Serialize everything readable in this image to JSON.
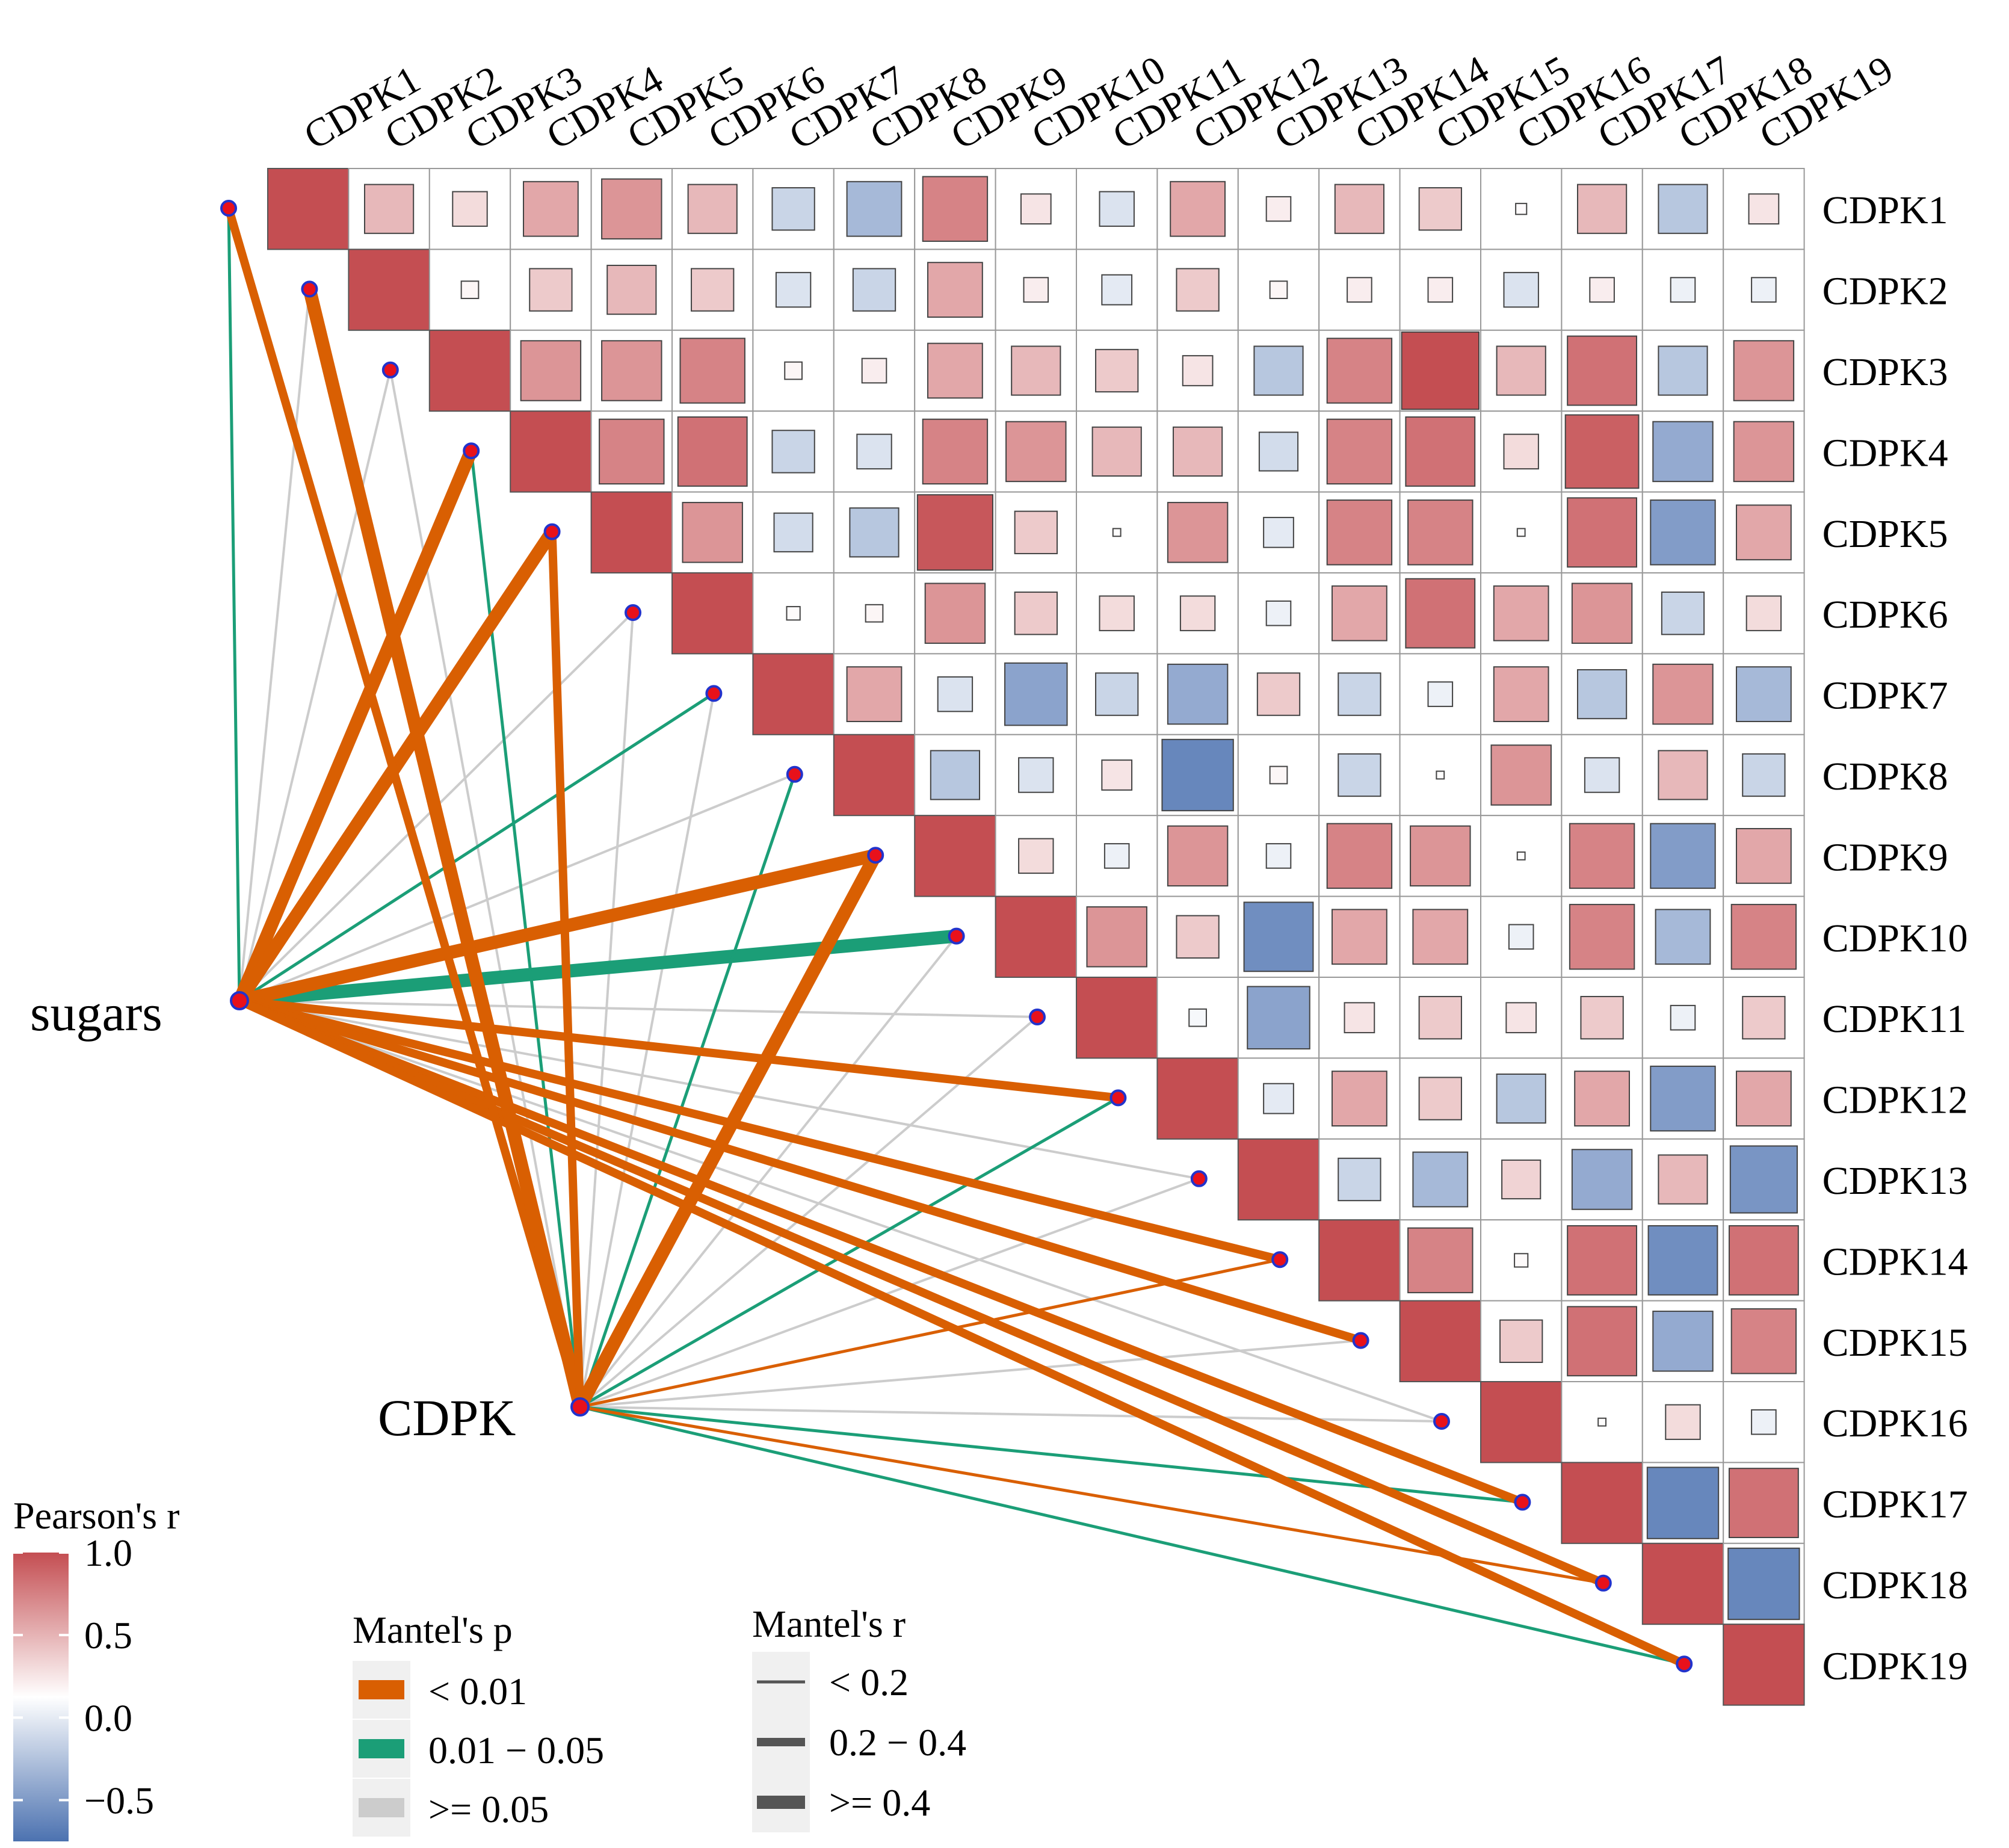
{
  "chart_data": {
    "type": "heatmap",
    "variables": [
      "CDPK1",
      "CDPK2",
      "CDPK3",
      "CDPK4",
      "CDPK5",
      "CDPK6",
      "CDPK7",
      "CDPK8",
      "CDPK9",
      "CDPK10",
      "CDPK11",
      "CDPK12",
      "CDPK13",
      "CDPK14",
      "CDPK15",
      "CDPK16",
      "CDPK17",
      "CDPK18",
      "CDPK19"
    ],
    "pearson_r_upper": [
      [
        0.4,
        0.2,
        0.5,
        0.6,
        0.4,
        -0.3,
        -0.5,
        0.7,
        0.15,
        -0.2,
        0.5,
        0.1,
        0.4,
        0.3,
        0.02,
        0.4,
        -0.4,
        0.15
      ],
      [
        0.05,
        0.3,
        0.4,
        0.3,
        -0.2,
        -0.3,
        0.5,
        0.1,
        -0.15,
        0.3,
        0.05,
        0.1,
        0.1,
        -0.2,
        0.1,
        -0.1,
        -0.1
      ],
      [
        0.6,
        0.6,
        0.7,
        0.05,
        0.1,
        0.5,
        0.4,
        0.3,
        0.15,
        -0.4,
        0.7,
        1.0,
        0.4,
        0.8,
        -0.4,
        0.6
      ],
      [
        0.7,
        0.8,
        -0.3,
        -0.2,
        0.7,
        0.6,
        0.4,
        0.4,
        -0.25,
        0.7,
        0.8,
        0.2,
        0.9,
        -0.6,
        0.6
      ],
      [
        0.6,
        -0.25,
        -0.4,
        0.95,
        0.3,
        0.01,
        0.6,
        -0.15,
        0.7,
        0.7,
        0.01,
        0.8,
        -0.7,
        0.5
      ],
      [
        0.03,
        0.05,
        0.6,
        0.3,
        0.2,
        0.2,
        -0.1,
        0.5,
        0.8,
        0.5,
        0.6,
        -0.3,
        0.2
      ],
      [
        0.5,
        -0.2,
        -0.65,
        -0.3,
        -0.6,
        0.3,
        -0.3,
        -0.1,
        0.5,
        -0.4,
        0.6,
        -0.5
      ],
      [
        -0.4,
        -0.2,
        0.15,
        -0.85,
        0.05,
        -0.3,
        0.01,
        0.6,
        -0.2,
        0.4,
        -0.3
      ],
      [
        0.2,
        -0.1,
        0.6,
        -0.1,
        0.7,
        0.6,
        0.01,
        0.7,
        -0.7,
        0.5
      ],
      [
        0.6,
        0.3,
        -0.8,
        0.5,
        0.5,
        -0.1,
        0.7,
        -0.5,
        0.7
      ],
      [
        -0.05,
        -0.65,
        0.15,
        0.3,
        0.15,
        0.3,
        -0.1,
        0.3
      ],
      [
        -0.15,
        0.5,
        0.3,
        -0.4,
        0.5,
        -0.7,
        0.5
      ],
      [
        -0.3,
        -0.5,
        0.25,
        -0.6,
        0.4,
        -0.75
      ],
      [
        0.7,
        0.03,
        0.8,
        -0.8,
        0.8
      ],
      [
        0.3,
        0.8,
        -0.6,
        0.7
      ],
      [
        0.01,
        0.2,
        -0.1
      ],
      [
        -0.85,
        0.8
      ],
      [
        -0.85
      ],
      []
    ],
    "color_scale": {
      "title": "Pearson's r",
      "ticks": [
        1.0,
        0.5,
        0.0,
        -0.5
      ],
      "tick_labels": [
        "1.0",
        "0.5",
        "0.0",
        "−0.5"
      ],
      "positive_color": "#c44e52",
      "neutral_color": "#ffffff",
      "negative_color": "#4c72b0",
      "range": [
        -0.75,
        1.0
      ]
    },
    "mantel_sources": [
      "sugars",
      "CDPK"
    ],
    "mantel_links": {
      "sugars": [
        {
          "p": "0.01-0.05",
          "r": "<0.2"
        },
        {
          "p": ">=0.05",
          "r": "<0.2"
        },
        {
          "p": ">=0.05",
          "r": "<0.2"
        },
        {
          "p": "<0.01",
          "r": ">=0.4"
        },
        {
          "p": "<0.01",
          "r": ">=0.4"
        },
        {
          "p": ">=0.05",
          "r": "<0.2"
        },
        {
          "p": "0.01-0.05",
          "r": "<0.2"
        },
        {
          "p": ">=0.05",
          "r": "<0.2"
        },
        {
          "p": "<0.01",
          "r": ">=0.4"
        },
        {
          "p": "0.01-0.05",
          "r": ">=0.4"
        },
        {
          "p": ">=0.05",
          "r": "<0.2"
        },
        {
          "p": "<0.01",
          "r": "0.2-0.4"
        },
        {
          "p": ">=0.05",
          "r": "<0.2"
        },
        {
          "p": "<0.01",
          "r": "0.2-0.4"
        },
        {
          "p": "<0.01",
          "r": "0.2-0.4"
        },
        {
          "p": ">=0.05",
          "r": "<0.2"
        },
        {
          "p": "<0.01",
          "r": "0.2-0.4"
        },
        {
          "p": "<0.01",
          "r": "0.2-0.4"
        },
        {
          "p": "<0.01",
          "r": "0.2-0.4"
        }
      ],
      "CDPK": [
        {
          "p": "<0.01",
          "r": "0.2-0.4"
        },
        {
          "p": "<0.01",
          "r": ">=0.4"
        },
        {
          "p": ">=0.05",
          "r": "<0.2"
        },
        {
          "p": "0.01-0.05",
          "r": "<0.2"
        },
        {
          "p": "<0.01",
          "r": "0.2-0.4"
        },
        {
          "p": ">=0.05",
          "r": "<0.2"
        },
        {
          "p": ">=0.05",
          "r": "<0.2"
        },
        {
          "p": "0.01-0.05",
          "r": "<0.2"
        },
        {
          "p": "<0.01",
          "r": ">=0.4"
        },
        {
          "p": ">=0.05",
          "r": "<0.2"
        },
        {
          "p": ">=0.05",
          "r": "<0.2"
        },
        {
          "p": "0.01-0.05",
          "r": "<0.2"
        },
        {
          "p": ">=0.05",
          "r": "<0.2"
        },
        {
          "p": "<0.01",
          "r": "<0.2"
        },
        {
          "p": ">=0.05",
          "r": "<0.2"
        },
        {
          "p": ">=0.05",
          "r": "<0.2"
        },
        {
          "p": "0.01-0.05",
          "r": "<0.2"
        },
        {
          "p": "<0.01",
          "r": "<0.2"
        },
        {
          "p": "0.01-0.05",
          "r": "<0.2"
        }
      ]
    },
    "mantel_p_legend": {
      "title": "Mantel's p",
      "items": [
        {
          "key": "<0.01",
          "label": "< 0.01",
          "color": "#d95f02"
        },
        {
          "key": "0.01-0.05",
          "label": "0.01 − 0.05",
          "color": "#1b9e77"
        },
        {
          "key": ">=0.05",
          "label": ">= 0.05",
          "color": "#cccccc"
        }
      ]
    },
    "mantel_r_legend": {
      "title": "Mantel's r",
      "items": [
        {
          "key": "<0.2",
          "label": "< 0.2"
        },
        {
          "key": "0.2-0.4",
          "label": "0.2 − 0.4"
        },
        {
          "key": ">=0.4",
          "label": ">= 0.4"
        }
      ]
    }
  }
}
